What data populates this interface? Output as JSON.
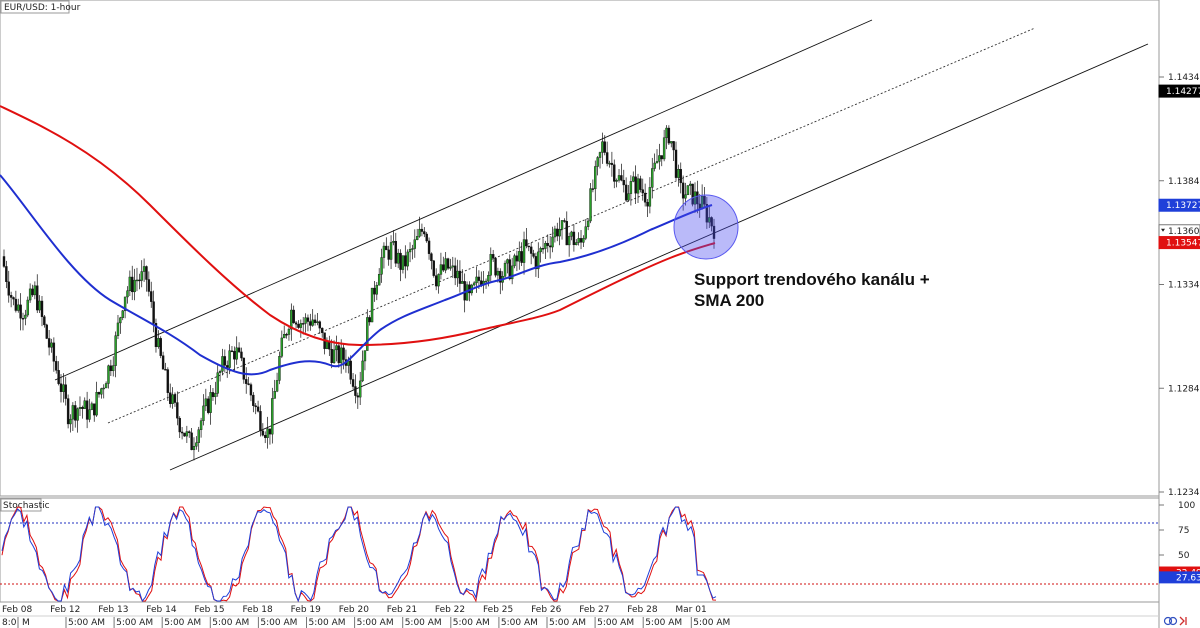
{
  "chart_data": {
    "type": "candlestick",
    "title": "EUR/USD: 1-hour",
    "price_axis": {
      "ticks": [
        1.14345,
        1.13845,
        1.13345,
        1.12845,
        1.12345
      ],
      "ylim": [
        1.122,
        1.1478
      ]
    },
    "price_labels": [
      {
        "value": 1.14277,
        "color": "#000000",
        "text": "1.14277"
      },
      {
        "value": 1.13727,
        "color": "#1f3fd9",
        "text": "1.13727"
      },
      {
        "value": 1.13604,
        "color": "#ffffff",
        "text": "1.13604"
      },
      {
        "value": 1.13547,
        "color": "#e01010",
        "text": "1.13547"
      }
    ],
    "price_series_approx": [
      1.1348,
      1.1326,
      1.1322,
      1.1331,
      1.131,
      1.1292,
      1.1272,
      1.1276,
      1.1272,
      1.1285,
      1.13,
      1.133,
      1.1337,
      1.1338,
      1.1305,
      1.1282,
      1.1268,
      1.1257,
      1.127,
      1.1283,
      1.1297,
      1.1303,
      1.1288,
      1.1272,
      1.1262,
      1.13,
      1.1322,
      1.1316,
      1.1318,
      1.1306,
      1.13,
      1.1299,
      1.1283,
      1.132,
      1.1346,
      1.1352,
      1.1343,
      1.1352,
      1.1363,
      1.1338,
      1.1343,
      1.1338,
      1.1327,
      1.1338,
      1.1345,
      1.134,
      1.1343,
      1.1352,
      1.1346,
      1.1355,
      1.1362,
      1.1358,
      1.1353,
      1.1378,
      1.1402,
      1.139,
      1.138,
      1.1383,
      1.1377,
      1.1396,
      1.1408,
      1.1379,
      1.1378,
      1.1372,
      1.1362
    ],
    "sma_100_approx": [
      1.139,
      1.1375,
      1.1358,
      1.134,
      1.1328,
      1.132,
      1.131,
      1.13,
      1.1292,
      1.1287,
      1.1286,
      1.129,
      1.1293,
      1.1296,
      1.1305,
      1.1318,
      1.1328,
      1.1334,
      1.1342,
      1.1348,
      1.1354,
      1.1358,
      1.1362,
      1.1368,
      1.1375
    ],
    "sma_200_approx": [
      1.142,
      1.141,
      1.1395,
      1.1378,
      1.136,
      1.1345,
      1.133,
      1.1318,
      1.1308,
      1.1304,
      1.1302,
      1.1302,
      1.1305,
      1.131,
      1.1316,
      1.1322,
      1.1331,
      1.134,
      1.1352
    ],
    "channel": {
      "upper_line": [
        [
          1.1282,
          1.147
        ]
      ],
      "mid_line": [
        [
          1.126,
          1.147
        ]
      ],
      "lower_line": [
        [
          1.125,
          1.145
        ]
      ]
    },
    "stochastic": {
      "title": "Stochastic",
      "ticks": [
        100,
        75,
        50,
        25
      ],
      "ylim": [
        0,
        100
      ],
      "levels": [
        80,
        20
      ],
      "value_labels": [
        {
          "value": 32.49,
          "text": "32.49",
          "color": "#e01010"
        },
        {
          "value": 27.63,
          "text": "27.63",
          "color": "#1f3fd9"
        }
      ]
    },
    "x_axis": {
      "dates": [
        "Feb 08",
        "Feb 12",
        "Feb 13",
        "Feb 14",
        "Feb 15",
        "Feb 18",
        "Feb 19",
        "Feb 20",
        "Feb 21",
        "Feb 22",
        "Feb 25",
        "Feb 26",
        "Feb 27",
        "Feb 28",
        "Mar 01"
      ],
      "time_labels": [
        "5:00 AM",
        "5:00 AM",
        "5:00 AM",
        "5:00 AM",
        "5:00 AM",
        "5:00 AM",
        "5:00 AM",
        "5:00 AM",
        "5:00 AM",
        "5:00 AM",
        "5:00 AM",
        "5:00 AM",
        "5:00 AM",
        "5:00 AM"
      ],
      "first_time_label": "8:0",
      "first_time_tail": "M"
    },
    "annotation": {
      "lines": [
        "Support trendového kanálu +",
        "SMA 200"
      ]
    },
    "colors": {
      "sma_fast": "#1f2fd0",
      "sma_slow": "#e01010",
      "candle_up": "#2aa02a",
      "candle_down": "#111111",
      "stoch_k": "#1f3fd9",
      "stoch_d": "#e01010",
      "highlight": "#5a5af0"
    }
  }
}
